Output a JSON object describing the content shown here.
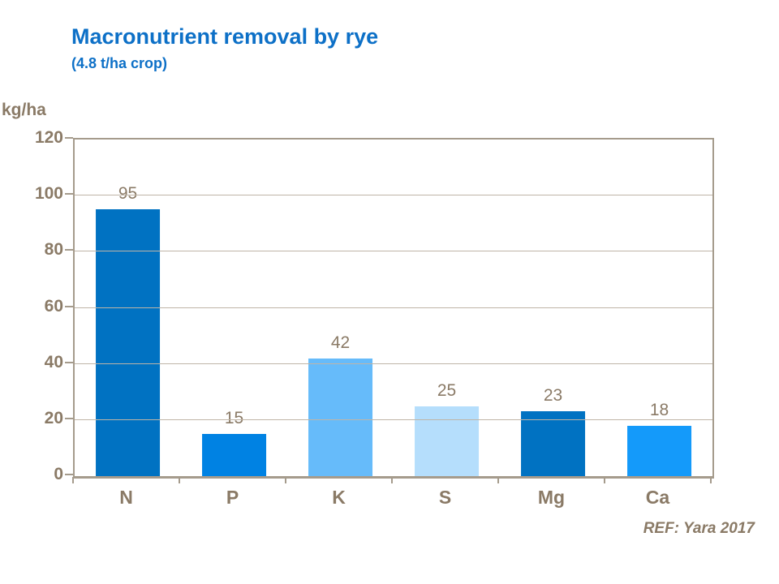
{
  "chart_data": {
    "type": "bar",
    "title": "Macronutrient removal by rye",
    "subtitle": "(4.8 t/ha crop)",
    "ylabel": "kg/ha",
    "categories": [
      "N",
      "P",
      "K",
      "S",
      "Mg",
      "Ca"
    ],
    "values": [
      95,
      15,
      42,
      25,
      23,
      18
    ],
    "bar_colors": [
      "#0072C2",
      "#0082E3",
      "#66BBFA",
      "#B5DEFC",
      "#0072C2",
      "#149AFA"
    ],
    "y_ticks": [
      0,
      20,
      40,
      60,
      80,
      100,
      120
    ],
    "ylim": [
      0,
      120
    ],
    "grid": true,
    "legend": false,
    "annotation": "REF: Yara 2017",
    "title_color": "#0D70C7",
    "text_color": "#8A7A66",
    "axis_color": "#A59B8C",
    "grid_color": "#BFB5A7"
  }
}
